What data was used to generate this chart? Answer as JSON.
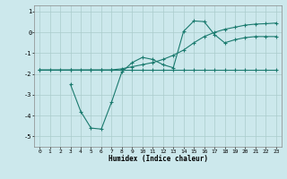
{
  "xlabel": "Humidex (Indice chaleur)",
  "ylabel": "",
  "xlim": [
    -0.5,
    23.5
  ],
  "ylim": [
    -5.5,
    1.3
  ],
  "yticks": [
    1,
    0,
    -1,
    -2,
    -3,
    -4,
    -5
  ],
  "xticks": [
    0,
    1,
    2,
    3,
    4,
    5,
    6,
    7,
    8,
    9,
    10,
    11,
    12,
    13,
    14,
    15,
    16,
    17,
    18,
    19,
    20,
    21,
    22,
    23
  ],
  "bg_color": "#cce8ec",
  "grid_color": "#aacccc",
  "line_color": "#1a7a6e",
  "line1": {
    "x": [
      0,
      1,
      2,
      3,
      4,
      5,
      6,
      7,
      8,
      9,
      10,
      11,
      12,
      13,
      14,
      15,
      16,
      17,
      18,
      19,
      20,
      21,
      22,
      23
    ],
    "y": [
      -1.8,
      -1.8,
      -1.8,
      -1.8,
      -1.8,
      -1.8,
      -1.8,
      -1.8,
      -1.8,
      -1.8,
      -1.8,
      -1.8,
      -1.8,
      -1.8,
      -1.8,
      -1.8,
      -1.8,
      -1.8,
      -1.8,
      -1.8,
      -1.8,
      -1.8,
      -1.8,
      -1.8
    ]
  },
  "line2": {
    "x": [
      3,
      4,
      5,
      6,
      7,
      8,
      9,
      10,
      11,
      12,
      13,
      14,
      15,
      16,
      17,
      18,
      19,
      20,
      21,
      22,
      23
    ],
    "y": [
      -2.5,
      -3.8,
      -4.6,
      -4.65,
      -3.35,
      -1.9,
      -1.45,
      -1.2,
      -1.3,
      -1.55,
      -1.7,
      0.05,
      0.55,
      0.52,
      -0.1,
      -0.5,
      -0.35,
      -0.25,
      -0.2,
      -0.2,
      -0.2
    ]
  },
  "line3": {
    "x": [
      0,
      3,
      5,
      6,
      7,
      8,
      9,
      10,
      11,
      12,
      13,
      14,
      15,
      16,
      17,
      18,
      19,
      20,
      21,
      22,
      23
    ],
    "y": [
      -1.8,
      -1.8,
      -1.8,
      -1.8,
      -1.8,
      -1.75,
      -1.65,
      -1.55,
      -1.45,
      -1.3,
      -1.1,
      -0.85,
      -0.5,
      -0.2,
      0.0,
      0.15,
      0.25,
      0.35,
      0.4,
      0.42,
      0.45
    ]
  }
}
